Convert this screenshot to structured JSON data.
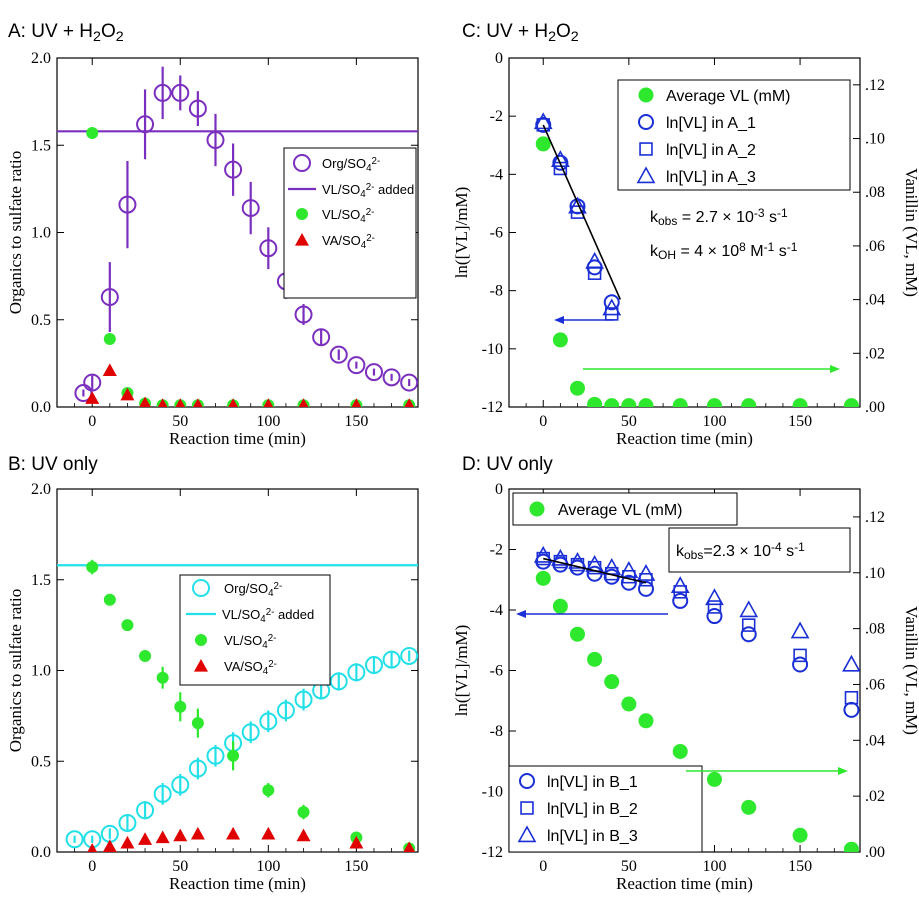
{
  "chart_data": [
    {
      "id": "A",
      "type": "scatter",
      "title": "A: UV + H2O2",
      "xlabel": "Reaction time (min)",
      "ylabel": "Organics to sulfate ratio",
      "xlim": [
        -20,
        185
      ],
      "ylim": [
        0,
        2.0
      ],
      "xticks": [
        0,
        50,
        100,
        150
      ],
      "yticks": [
        0.0,
        0.5,
        1.0,
        1.5,
        2.0
      ],
      "hline": {
        "y": 1.58,
        "color": "#7b2fbf"
      },
      "legend": [
        "Org/SO4 2-",
        "VL/SO4 2- added",
        "VL/SO4 2-",
        "VA/SO4 2-"
      ],
      "series": [
        {
          "name": "Org/SO4 2-",
          "marker": "open-circle",
          "color": "#7b2fbf",
          "x": [
            -5,
            0,
            10,
            20,
            30,
            40,
            50,
            60,
            70,
            80,
            90,
            100,
            110,
            120,
            130,
            140,
            150,
            160,
            170,
            180
          ],
          "y": [
            0.08,
            0.14,
            0.63,
            1.16,
            1.62,
            1.8,
            1.8,
            1.71,
            1.53,
            1.36,
            1.14,
            0.91,
            0.72,
            0.53,
            0.4,
            0.3,
            0.24,
            0.2,
            0.17,
            0.14
          ],
          "err": [
            0.02,
            0.04,
            0.2,
            0.25,
            0.2,
            0.15,
            0.1,
            0.1,
            0.15,
            0.15,
            0.15,
            0.12,
            0.1,
            0.06,
            0.05,
            0.03,
            0.02,
            0.02,
            0.02,
            0.02
          ]
        },
        {
          "name": "VL/SO4 2-",
          "marker": "filled-circle",
          "color": "#2ee82e",
          "x": [
            0,
            10,
            20,
            30,
            40,
            50,
            60,
            80,
            100,
            120,
            150,
            180
          ],
          "y": [
            1.57,
            0.39,
            0.08,
            0.02,
            0.01,
            0.01,
            0.01,
            0.01,
            0.01,
            0.01,
            0.01,
            0.01
          ]
        },
        {
          "name": "VA/SO4 2-",
          "marker": "filled-triangle",
          "color": "#e00000",
          "x": [
            0,
            10,
            20,
            30,
            40,
            50,
            60,
            80,
            100,
            120,
            150,
            180
          ],
          "y": [
            0.05,
            0.21,
            0.07,
            0.02,
            0.01,
            0.01,
            0.01,
            0.01,
            0.01,
            0.01,
            0.01,
            0.01
          ]
        }
      ]
    },
    {
      "id": "B",
      "type": "scatter",
      "title": "B: UV only",
      "xlabel": "Reaction time (min)",
      "ylabel": "Organics to sulfate ratio",
      "xlim": [
        -20,
        185
      ],
      "ylim": [
        0,
        2.0
      ],
      "xticks": [
        0,
        50,
        100,
        150
      ],
      "yticks": [
        0.0,
        0.5,
        1.0,
        1.5,
        2.0
      ],
      "hline": {
        "y": 1.58,
        "color": "#22e0e8"
      },
      "legend": [
        "Org/SO4 2-",
        "VL/SO4 2- added",
        "VL/SO4 2-",
        "VA/SO4 2-"
      ],
      "series": [
        {
          "name": "Org/SO4 2-",
          "marker": "open-circle",
          "color": "#22e0e8",
          "x": [
            -10,
            0,
            10,
            20,
            30,
            40,
            50,
            60,
            70,
            80,
            90,
            100,
            110,
            120,
            130,
            140,
            150,
            160,
            170,
            180
          ],
          "y": [
            0.07,
            0.07,
            0.1,
            0.16,
            0.23,
            0.32,
            0.37,
            0.46,
            0.53,
            0.6,
            0.66,
            0.72,
            0.78,
            0.84,
            0.89,
            0.94,
            0.99,
            1.03,
            1.06,
            1.08
          ],
          "err": [
            0.02,
            0.02,
            0.03,
            0.04,
            0.05,
            0.06,
            0.06,
            0.06,
            0.06,
            0.06,
            0.06,
            0.06,
            0.06,
            0.06,
            0.05,
            0.05,
            0.05,
            0.05,
            0.04,
            0.03
          ]
        },
        {
          "name": "VL/SO4 2-",
          "marker": "filled-circle",
          "color": "#2ee82e",
          "x": [
            0,
            10,
            20,
            30,
            40,
            50,
            60,
            80,
            100,
            120,
            150,
            180
          ],
          "y": [
            1.57,
            1.39,
            1.25,
            1.08,
            0.96,
            0.8,
            0.71,
            0.53,
            0.34,
            0.22,
            0.08,
            0.02
          ],
          "err": [
            0.04,
            0,
            0,
            0,
            0.06,
            0.08,
            0.08,
            0.08,
            0.04,
            0.04,
            0.02,
            0.02
          ]
        },
        {
          "name": "VA/SO4 2-",
          "marker": "filled-triangle",
          "color": "#e00000",
          "x": [
            0,
            10,
            20,
            30,
            40,
            50,
            60,
            80,
            100,
            120,
            150,
            180
          ],
          "y": [
            0.01,
            0.03,
            0.05,
            0.07,
            0.08,
            0.09,
            0.1,
            0.1,
            0.1,
            0.09,
            0.05,
            0.02
          ]
        }
      ]
    },
    {
      "id": "C",
      "type": "scatter",
      "title": "C: UV + H2O2",
      "xlabel": "Reaction time (min)",
      "ylabel": "ln([VL]/mM)",
      "y2label": "Vanillin (VL, mM)",
      "xlim": [
        -20,
        185
      ],
      "ylim": [
        -12,
        0
      ],
      "y2lim": [
        0,
        0.13
      ],
      "xticks": [
        0,
        50,
        100,
        150
      ],
      "yticks": [
        -12,
        -10,
        -8,
        -6,
        -4,
        -2,
        0
      ],
      "y2ticks": [
        ".00",
        ".02",
        ".04",
        ".06",
        ".08",
        ".10",
        ".12"
      ],
      "annotation_1": "kobs = 2.7 × 10-3 s-1",
      "annotation_2": "kOH = 4 × 108 M-1 s-1",
      "fit": {
        "x": [
          0,
          45
        ],
        "y": [
          -2.3,
          -8.3
        ]
      },
      "legend": [
        "Average VL (mM)",
        "ln[VL] in A_1",
        "ln[VL] in A_2",
        "ln[VL] in A_3"
      ],
      "series": [
        {
          "name": "Average VL (mM)",
          "axis": "right",
          "marker": "filled-circle",
          "color": "#2ee82e",
          "x": [
            0,
            10,
            20,
            30,
            40,
            50,
            60,
            80,
            100,
            120,
            150,
            180
          ],
          "y": [
            0.098,
            0.025,
            0.007,
            0.001,
            0.0005,
            0.0005,
            0.0005,
            0.0005,
            0.0005,
            0.0005,
            0.0005,
            0.0005
          ]
        },
        {
          "name": "ln[VL] in A_1",
          "axis": "left",
          "marker": "open-circle",
          "color": "#1a2fd6",
          "x": [
            0,
            10,
            20,
            30,
            40
          ],
          "y": [
            -2.3,
            -3.6,
            -5.1,
            -7.2,
            -8.4
          ]
        },
        {
          "name": "ln[VL] in A_2",
          "axis": "left",
          "marker": "open-square",
          "color": "#1a2fd6",
          "x": [
            0,
            10,
            20,
            30,
            40
          ],
          "y": [
            -2.3,
            -3.8,
            -5.3,
            -7.4,
            -8.8
          ]
        },
        {
          "name": "ln[VL] in A_3",
          "axis": "left",
          "marker": "open-triangle",
          "color": "#1a2fd6",
          "x": [
            0,
            10,
            20,
            30,
            40
          ],
          "y": [
            -2.2,
            -3.5,
            -5.1,
            -7.0,
            -8.6
          ]
        }
      ]
    },
    {
      "id": "D",
      "type": "scatter",
      "title": "D: UV only",
      "xlabel": "Reaction time (min)",
      "ylabel": "ln([VL]/mM)",
      "y2label": "Vanillin (VL, mM)",
      "xlim": [
        -20,
        185
      ],
      "ylim": [
        -12,
        0
      ],
      "y2lim": [
        0,
        0.13
      ],
      "xticks": [
        0,
        50,
        100,
        150
      ],
      "yticks": [
        -12,
        -10,
        -8,
        -6,
        -4,
        -2,
        0
      ],
      "y2ticks": [
        ".00",
        ".02",
        ".04",
        ".06",
        ".08",
        ".10",
        ".12"
      ],
      "annotation_1": "kobs=2.3 × 10-4 s-1",
      "fit": {
        "x": [
          0,
          60
        ],
        "y": [
          -2.3,
          -3.1
        ]
      },
      "legend": [
        "Average VL (mM)",
        "ln[VL] in B_1",
        "ln[VL] in B_2",
        "ln[VL] in B_3"
      ],
      "series": [
        {
          "name": "Average VL (mM)",
          "axis": "right",
          "marker": "filled-circle",
          "color": "#2ee82e",
          "x": [
            0,
            10,
            20,
            30,
            40,
            50,
            60,
            80,
            100,
            120,
            150,
            180
          ],
          "y": [
            0.098,
            0.088,
            0.078,
            0.069,
            0.061,
            0.053,
            0.047,
            0.036,
            0.026,
            0.016,
            0.006,
            0.001
          ]
        },
        {
          "name": "ln[VL] in B_1",
          "axis": "left",
          "marker": "open-circle",
          "color": "#1a2fd6",
          "x": [
            0,
            10,
            20,
            30,
            40,
            50,
            60,
            80,
            100,
            120,
            150,
            180
          ],
          "y": [
            -2.4,
            -2.5,
            -2.6,
            -2.8,
            -2.9,
            -3.1,
            -3.3,
            -3.7,
            -4.2,
            -4.8,
            -5.8,
            -7.3
          ]
        },
        {
          "name": "ln[VL] in B_2",
          "axis": "left",
          "marker": "open-square",
          "color": "#1a2fd6",
          "x": [
            0,
            10,
            20,
            30,
            40,
            50,
            60,
            80,
            100,
            120,
            150,
            180
          ],
          "y": [
            -2.3,
            -2.4,
            -2.5,
            -2.6,
            -2.8,
            -2.9,
            -3.0,
            -3.4,
            -3.9,
            -4.5,
            -5.5,
            -6.9
          ]
        },
        {
          "name": "ln[VL] in B_3",
          "axis": "left",
          "marker": "open-triangle",
          "color": "#1a2fd6",
          "x": [
            0,
            10,
            20,
            30,
            40,
            50,
            60,
            80,
            100,
            120,
            150,
            180
          ],
          "y": [
            -2.2,
            -2.3,
            -2.4,
            -2.5,
            -2.6,
            -2.7,
            -2.8,
            -3.2,
            -3.6,
            -4.0,
            -4.7,
            -5.8
          ]
        }
      ]
    }
  ]
}
